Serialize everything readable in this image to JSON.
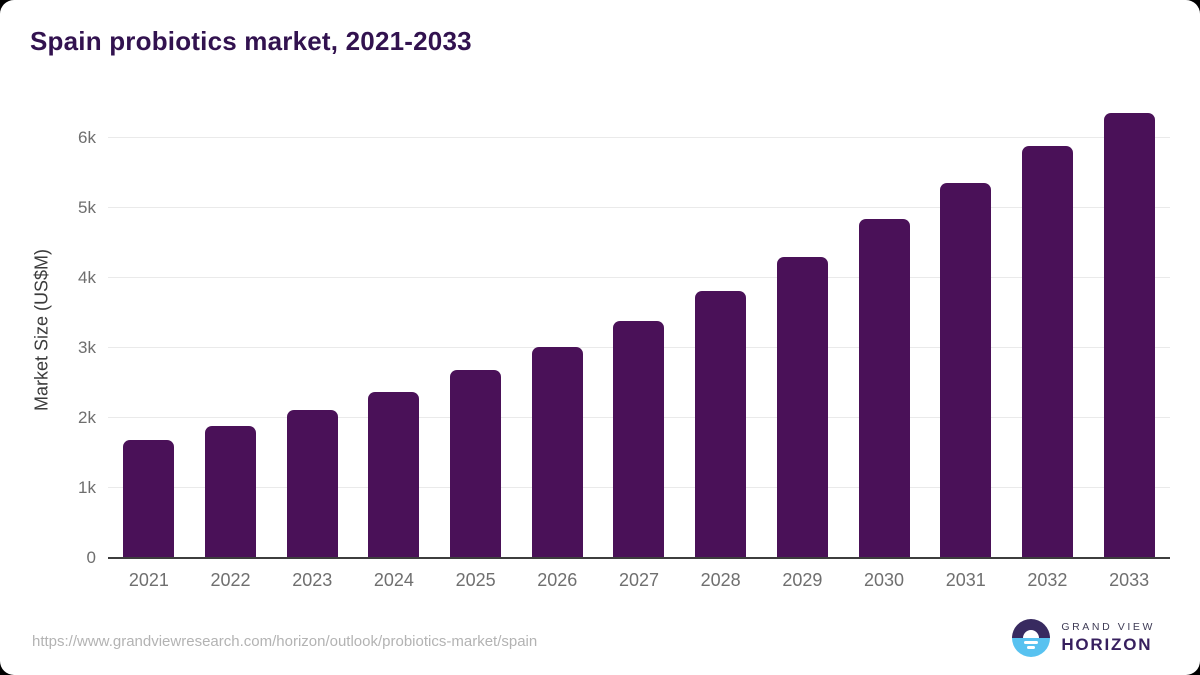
{
  "chart_data": {
    "type": "bar",
    "title": "Spain probiotics market, 2021-2033",
    "categories": [
      "2021",
      "2022",
      "2023",
      "2024",
      "2025",
      "2026",
      "2027",
      "2028",
      "2029",
      "2030",
      "2031",
      "2032",
      "2033"
    ],
    "values": [
      1680,
      1880,
      2110,
      2370,
      2680,
      3010,
      3390,
      3820,
      4300,
      4840,
      5360,
      5880,
      6360
    ],
    "xlabel": "",
    "ylabel": "Market Size (US$M)",
    "ylim": [
      0,
      6540
    ],
    "yticks": [
      "0",
      "1k",
      "2k",
      "3k",
      "4k",
      "5k",
      "6k"
    ],
    "ytick_values": [
      0,
      1000,
      2000,
      3000,
      4000,
      5000,
      6000
    ],
    "grid": "horizontal",
    "legend": "none",
    "bar_color": "#4a1158"
  },
  "footer": {
    "url": "https://www.grandviewresearch.com/horizon/outlook/probiotics-market/spain",
    "logo": {
      "line1": "GRAND VIEW",
      "line2": "HORIZON"
    }
  },
  "colors": {
    "title": "#32124f",
    "bar": "#4a1158",
    "gridline": "#eaeaea",
    "axis_line": "#3d3d3d",
    "tick_text": "#6e6e6e",
    "url_text": "#b3b3b3",
    "logo_navy": "#382a60",
    "logo_blue": "#58c2f0"
  }
}
